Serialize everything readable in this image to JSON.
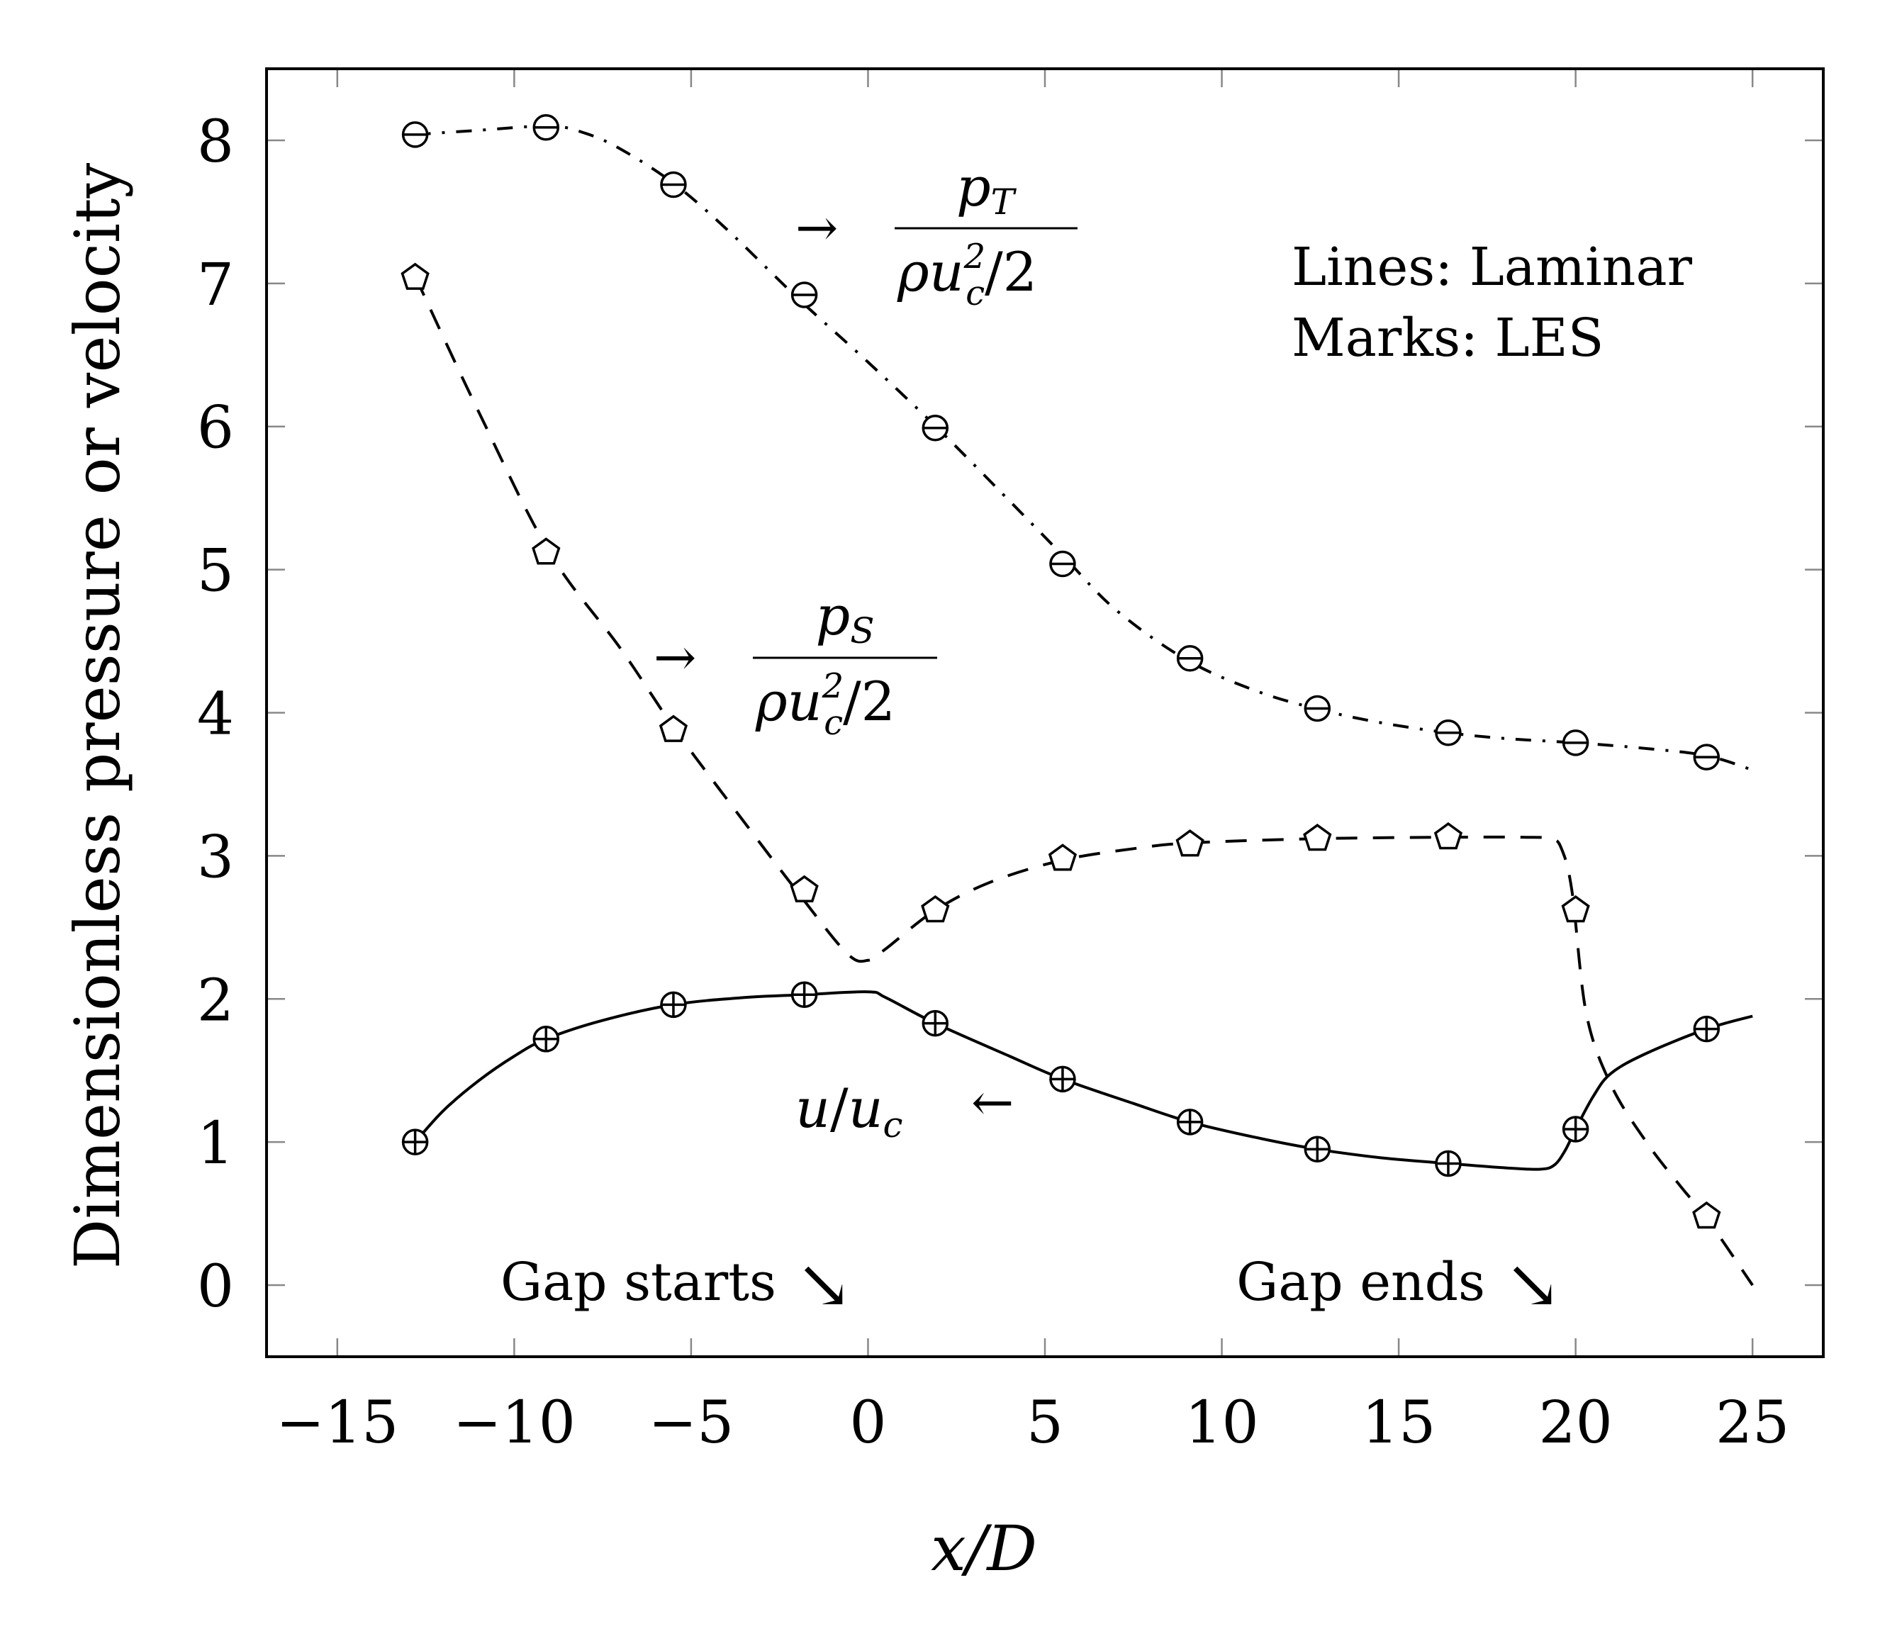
{
  "chart_data": {
    "type": "line",
    "xlabel": "x/D",
    "ylabel": "Dimensionless pressure or velocity",
    "xlim": [
      -17,
      27
    ],
    "ylim": [
      -0.5,
      8.5
    ],
    "xticks": [
      -15,
      -10,
      -5,
      0,
      5,
      10,
      15,
      20,
      25
    ],
    "xtick_labels": [
      "−15",
      "−10",
      "−5",
      "0",
      "5",
      "10",
      "15",
      "20",
      "25"
    ],
    "yticks": [
      0,
      1,
      2,
      3,
      4,
      5,
      6,
      7,
      8
    ],
    "ytick_labels": [
      "0",
      "1",
      "2",
      "3",
      "4",
      "5",
      "6",
      "7",
      "8"
    ],
    "grid": false,
    "legend_note": {
      "line1": "Lines: Laminar",
      "line2": "Marks: LES"
    },
    "series": [
      {
        "name": "p_T / (rho u_c^2 / 2)",
        "label": {
          "arrow": "→",
          "num": "p",
          "num_sub": "T",
          "den_rho": "ρ",
          "den_u": "u",
          "den_sup": "2",
          "den_sub": "c",
          "den_rest": "/2"
        },
        "line_style": "dash-dot",
        "marker": "circle-minus",
        "laminar": {
          "x": [
            -12.8,
            -11,
            -9,
            -8,
            -7,
            -5.5,
            -4,
            -2,
            0,
            2,
            4,
            5.5,
            7,
            9,
            11,
            12.8,
            14.5,
            16.4,
            18,
            20,
            22,
            23.7,
            25
          ],
          "y": [
            8.04,
            8.07,
            8.1,
            8.05,
            7.94,
            7.7,
            7.38,
            6.9,
            6.45,
            5.98,
            5.48,
            5.1,
            4.72,
            4.37,
            4.15,
            4.02,
            3.93,
            3.86,
            3.82,
            3.79,
            3.75,
            3.7,
            3.6
          ]
        },
        "les": {
          "x": [
            -12.8,
            -9.1,
            -5.5,
            -1.8,
            1.9,
            5.5,
            9.1,
            12.7,
            16.4,
            20.0,
            23.7
          ],
          "y": [
            8.04,
            8.09,
            7.69,
            6.92,
            5.99,
            5.04,
            4.38,
            4.03,
            3.86,
            3.79,
            3.69
          ]
        }
      },
      {
        "name": "p_S / (rho u_c^2 / 2)",
        "label": {
          "arrow": "→",
          "num": "p",
          "num_sub": "S",
          "den_rho": "ρ",
          "den_u": "u",
          "den_sup": "2",
          "den_sub": "c",
          "den_rest": "/2"
        },
        "line_style": "dashed",
        "marker": "pentagon",
        "laminar": {
          "x": [
            -12.8,
            -11,
            -9,
            -7,
            -5.5,
            -4,
            -2,
            -0.6,
            0,
            0.5,
            1.9,
            3.5,
            5.5,
            7.5,
            9.1,
            12.7,
            16.4,
            18.5,
            19.3,
            19.6,
            19.9,
            20.3,
            21,
            22,
            23,
            23.7,
            25
          ],
          "y": [
            7.05,
            6.1,
            5.12,
            4.45,
            3.9,
            3.4,
            2.75,
            2.32,
            2.27,
            2.35,
            2.62,
            2.82,
            2.97,
            3.05,
            3.09,
            3.12,
            3.13,
            3.13,
            3.12,
            3.05,
            2.75,
            1.9,
            1.4,
            1.0,
            0.68,
            0.47,
            0.0
          ]
        },
        "les": {
          "x": [
            -12.8,
            -9.1,
            -5.5,
            -1.8,
            1.9,
            5.5,
            9.1,
            12.7,
            16.4,
            20.0,
            23.7
          ],
          "y": [
            7.04,
            5.12,
            3.88,
            2.76,
            2.62,
            2.98,
            3.08,
            3.12,
            3.13,
            2.62,
            0.48
          ]
        }
      },
      {
        "name": "u / u_c",
        "label": {
          "arrow": "←",
          "text_u": "u",
          "text_slash": "/",
          "text_uc": "u",
          "text_sub": "c"
        },
        "line_style": "solid",
        "marker": "circle-plus",
        "laminar": {
          "x": [
            -12.8,
            -12,
            -11,
            -10,
            -9.1,
            -7.5,
            -5.5,
            -3.5,
            -1.8,
            0,
            0.5,
            1.9,
            4,
            5.5,
            7.5,
            9.1,
            11,
            12.7,
            14.5,
            16.4,
            18,
            19,
            19.4,
            19.7,
            20,
            20.5,
            21,
            22,
            23.7,
            25
          ],
          "y": [
            1.0,
            1.22,
            1.43,
            1.6,
            1.72,
            1.85,
            1.96,
            2.01,
            2.03,
            2.05,
            2.01,
            1.83,
            1.6,
            1.44,
            1.27,
            1.14,
            1.03,
            0.95,
            0.89,
            0.85,
            0.82,
            0.81,
            0.84,
            0.94,
            1.09,
            1.32,
            1.48,
            1.62,
            1.79,
            1.88
          ]
        },
        "les": {
          "x": [
            -12.8,
            -9.1,
            -5.5,
            -1.8,
            1.9,
            5.5,
            9.1,
            12.7,
            16.4,
            20.0,
            23.7
          ],
          "y": [
            1.0,
            1.72,
            1.96,
            2.03,
            1.83,
            1.44,
            1.14,
            0.95,
            0.85,
            1.09,
            1.79
          ]
        }
      }
    ],
    "annotations": [
      {
        "text": "Gap starts",
        "arrow": "↘",
        "x": 0,
        "y": 0
      },
      {
        "text": "Gap ends",
        "arrow": "↘",
        "x": 20,
        "y": 0
      }
    ]
  }
}
